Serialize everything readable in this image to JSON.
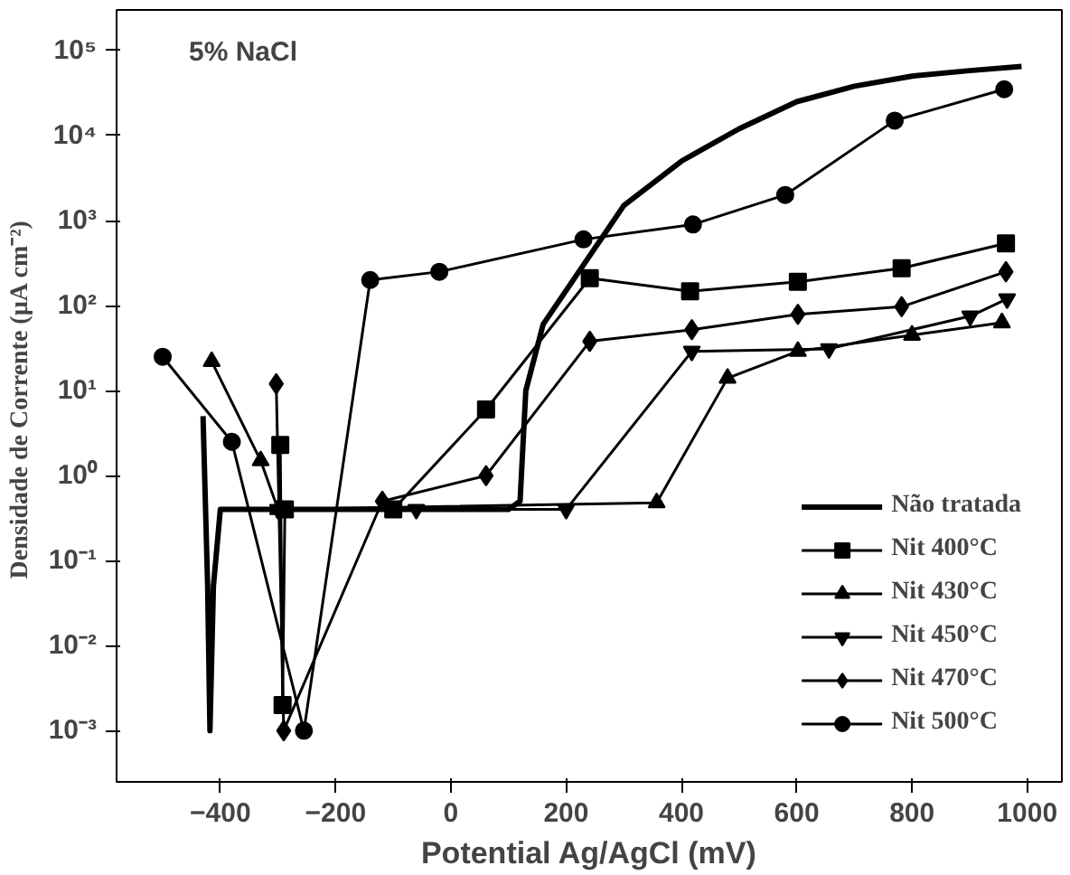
{
  "chart_data": {
    "type": "line",
    "xlabel": "Potential Ag/AgCl (mV)",
    "ylabel": "Densidade de Corrente  (µA cm⁻²)",
    "annotations": [
      "5% NaCl"
    ],
    "log": "y",
    "xlim": [
      -580,
      1060
    ],
    "ylim": [
      0.00025,
      300000
    ],
    "xticks": [
      -400,
      -200,
      0,
      200,
      400,
      600,
      800,
      1000
    ],
    "yticks": [
      {
        "value": 0.001,
        "label": "10⁻³"
      },
      {
        "value": 0.01,
        "label": "10⁻²"
      },
      {
        "value": 0.1,
        "label": "10⁻¹"
      },
      {
        "value": 1,
        "label": "10⁰"
      },
      {
        "value": 10,
        "label": "10¹"
      },
      {
        "value": 100,
        "label": "10²"
      },
      {
        "value": 1000,
        "label": "10³"
      },
      {
        "value": 10000,
        "label": "10⁴"
      },
      {
        "value": 100000,
        "label": "10⁵"
      }
    ],
    "grid": false,
    "legend": "bottom right",
    "series": [
      {
        "name": "Não tratada",
        "color": "#000000",
        "marker": "none",
        "x": [
          -430,
          -422,
          -418,
          -412,
          -400,
          -300,
          -200,
          0,
          100,
          120,
          130,
          160,
          230,
          300,
          400,
          500,
          600,
          700,
          800,
          900,
          990
        ],
        "values": [
          5,
          0.05,
          0.001,
          0.05,
          0.4,
          0.4,
          0.4,
          0.4,
          0.4,
          0.5,
          10,
          60,
          300,
          1500,
          5000,
          12000,
          25000,
          38000,
          50000,
          58000,
          65000
        ]
      },
      {
        "name": "Nit 400°C",
        "color": "#000000",
        "marker": "square",
        "x": [
          -296,
          -292,
          -288,
          -100,
          61,
          241,
          415,
          602,
          782,
          963
        ],
        "values": [
          2.3,
          0.002,
          0.4,
          0.4,
          6,
          210,
          147,
          190,
          275,
          540
        ]
      },
      {
        "name": "Nit 430°C",
        "color": "#000000",
        "marker": "triangle",
        "x": [
          -415,
          -330,
          -300,
          357,
          480,
          602,
          800,
          956
        ],
        "values": [
          22,
          1.5,
          0.4,
          0.48,
          14,
          29,
          45,
          63
        ]
      },
      {
        "name": "Nit 450°C",
        "color": "#000000",
        "marker": "triangle_down",
        "x": [
          -300,
          -60,
          200,
          418,
          656,
          901,
          965
        ],
        "values": [
          0.4,
          0.4,
          0.4,
          29,
          31,
          75,
          120
        ]
      },
      {
        "name": "Nit 470°C",
        "color": "#000000",
        "marker": "diamond",
        "x": [
          -303,
          -290,
          -119,
          61,
          241,
          418,
          602,
          782,
          963
        ],
        "values": [
          12,
          0.001,
          0.5,
          1,
          38,
          52,
          79,
          97,
          250
        ]
      },
      {
        "name": "Nit 500°C",
        "color": "#000000",
        "marker": "circle",
        "x": [
          -500,
          -380,
          -255,
          -140,
          -20,
          230,
          420,
          580,
          770,
          960
        ],
        "values": [
          25,
          2.5,
          0.001,
          200,
          250,
          600,
          900,
          2000,
          15000,
          35000
        ]
      }
    ]
  }
}
